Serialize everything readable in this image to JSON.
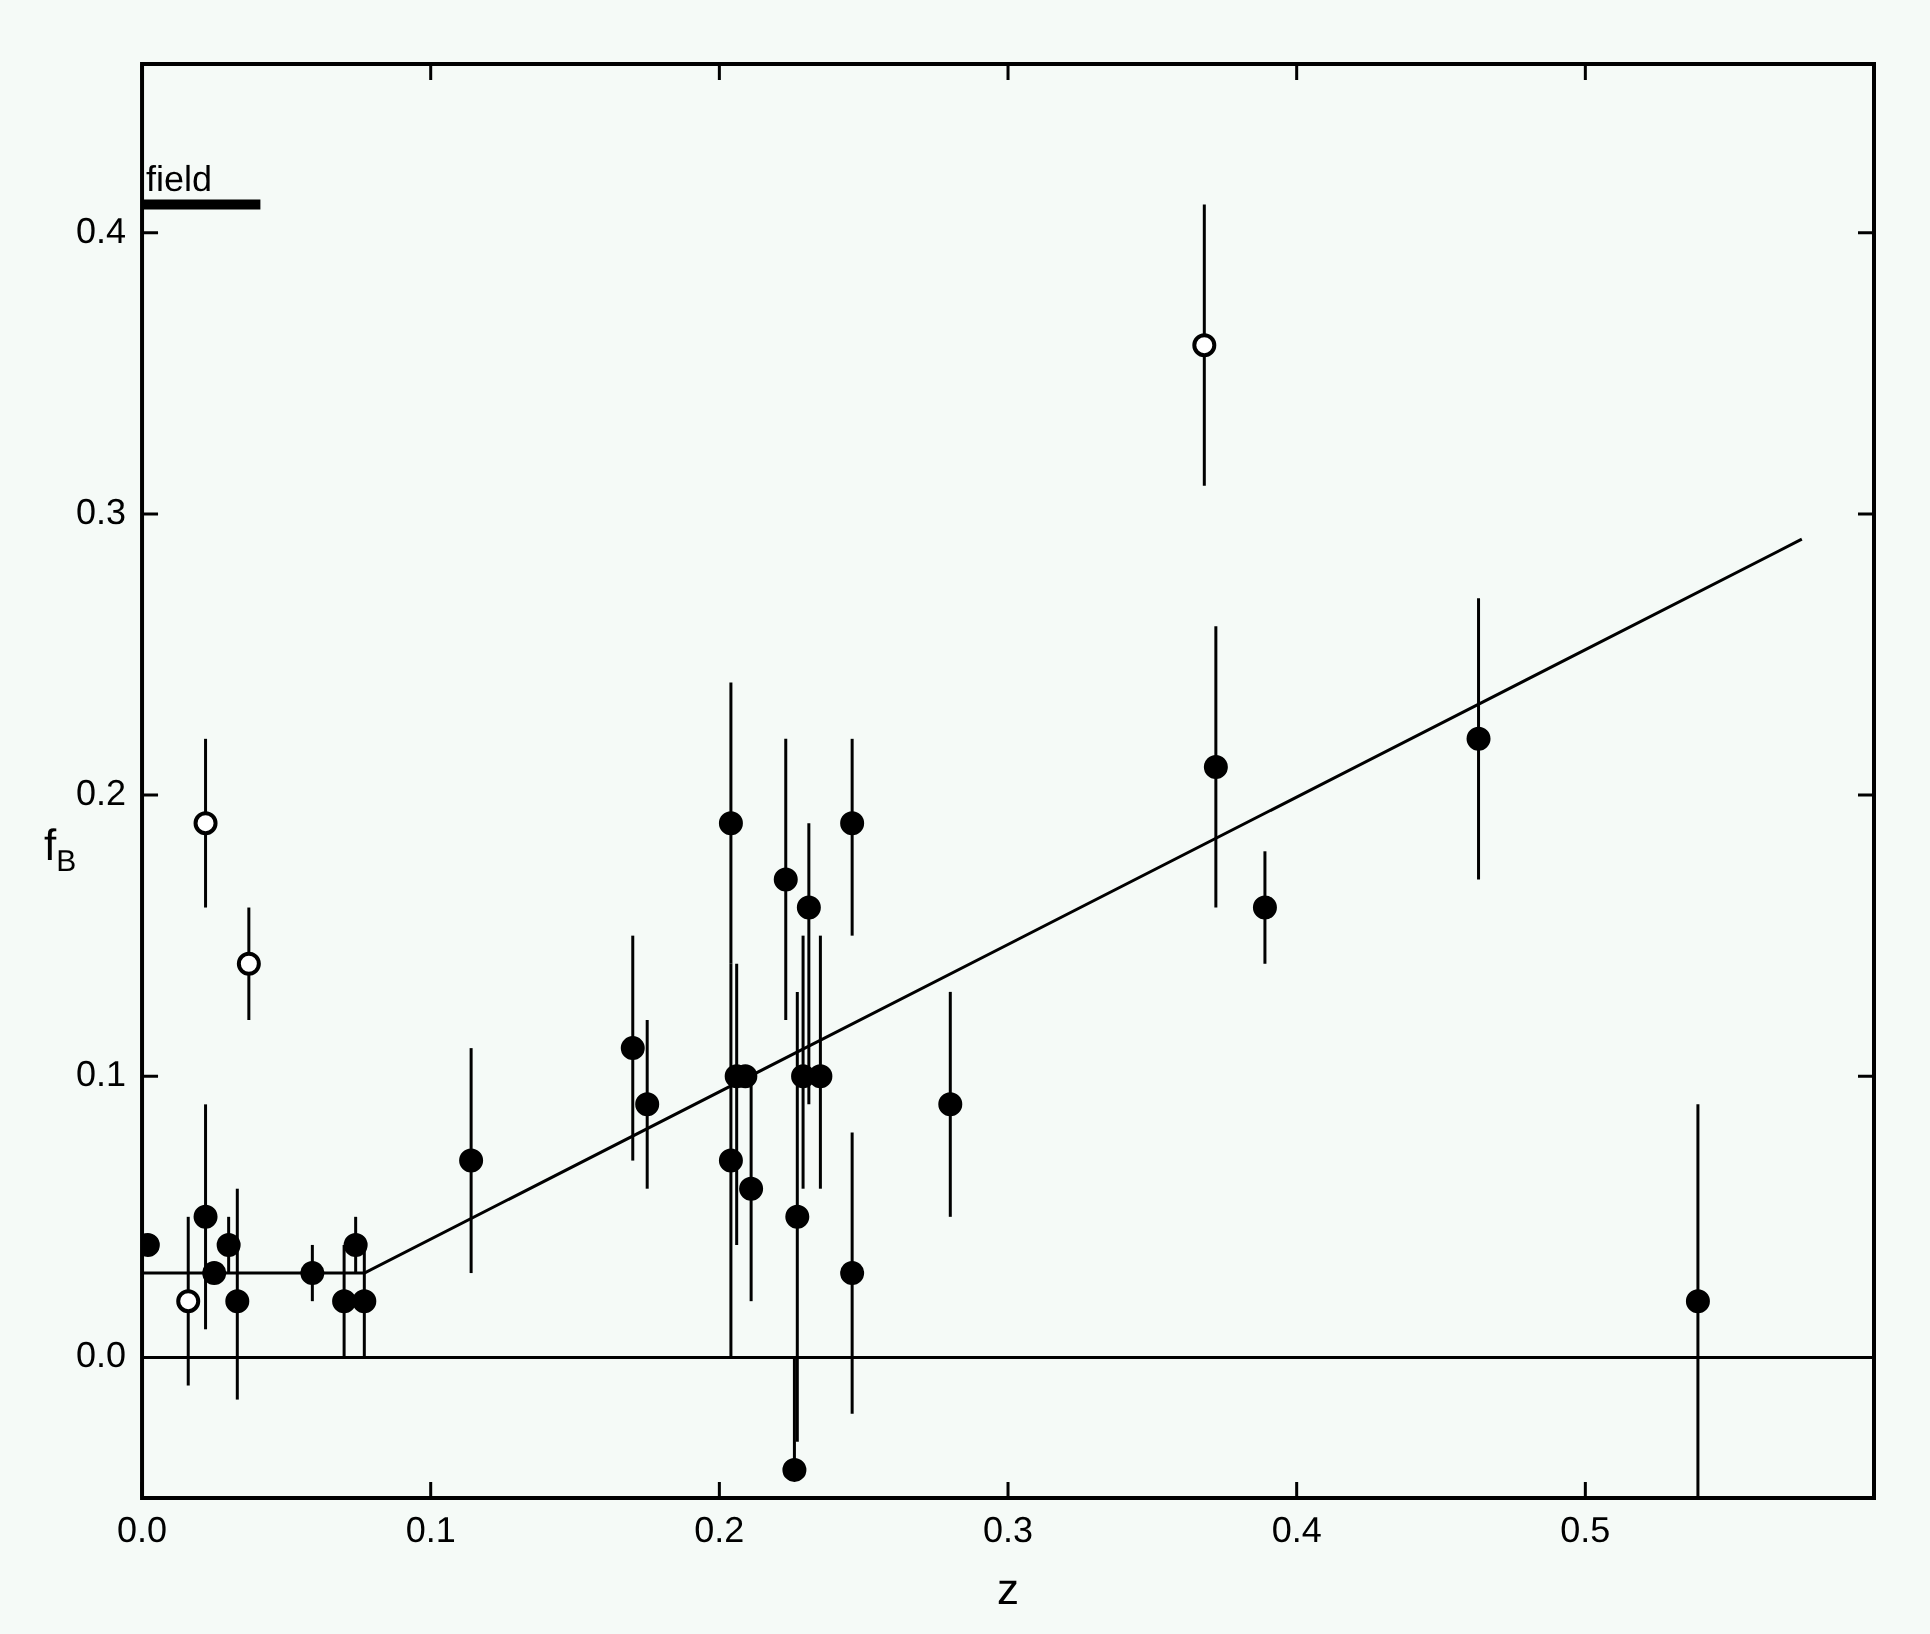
{
  "chart_data": {
    "type": "scatter",
    "xlabel": "z",
    "ylabel": "f$_{B}$",
    "xlim": [
      0,
      0.6
    ],
    "ylim": [
      -0.05,
      0.46
    ],
    "xticks": [
      {
        "value": 0,
        "label": "0.0"
      },
      {
        "value": 0.1,
        "label": "0.1"
      },
      {
        "value": 0.2,
        "label": "0.2"
      },
      {
        "value": 0.3,
        "label": "0.3"
      },
      {
        "value": 0.4,
        "label": "0.4"
      },
      {
        "value": 0.5,
        "label": "0.5"
      }
    ],
    "yticks": [
      {
        "value": 0,
        "label": "0.0"
      },
      {
        "value": 0.1,
        "label": "0.1"
      },
      {
        "value": 0.2,
        "label": "0.2"
      },
      {
        "value": 0.3,
        "label": "0.3"
      },
      {
        "value": 0.4,
        "label": "0.4"
      }
    ],
    "grid": false,
    "legend": false,
    "marker": "circle",
    "ref_lines": [
      {
        "axis": "y",
        "value": 0,
        "color": "#000000"
      }
    ],
    "series": [
      {
        "type": "scatter",
        "color": "#000000",
        "x": [
          0.002,
          0.022,
          0.025,
          0.03,
          0.033,
          0.059,
          0.07,
          0.074,
          0.077,
          0.114,
          0.17,
          0.175,
          0.204,
          0.204,
          0.206,
          0.209,
          0.211,
          0.223,
          0.226,
          0.227,
          0.229,
          0.231,
          0.235,
          0.246,
          0.246,
          0.28,
          0.372,
          0.389,
          0.463,
          0.539
        ],
        "values": [
          0.04,
          0.05,
          0.03,
          0.04,
          0.02,
          0.03,
          0.02,
          0.04,
          0.02,
          0.07,
          0.11,
          0.09,
          0.19,
          0.07,
          0.1,
          0.1,
          0.06,
          0.17,
          -0.04,
          0.05,
          0.1,
          0.16,
          0.1,
          0.19,
          0.03,
          0.09,
          0.21,
          0.16,
          0.22,
          0.02
        ],
        "errors": [
          null,
          [
            0.01,
            0.09
          ],
          null,
          [
            0.03,
            0.05
          ],
          [
            -0.015,
            0.06
          ],
          [
            0.02,
            0.04
          ],
          [
            0,
            0.04
          ],
          [
            0.03,
            0.05
          ],
          [
            0,
            0.04
          ],
          [
            0.03,
            0.11
          ],
          [
            0.07,
            0.15
          ],
          [
            0.06,
            0.12
          ],
          [
            0.14,
            0.24
          ],
          [
            0,
            0.14
          ],
          [
            0.04,
            0.14
          ],
          null,
          [
            0.02,
            0.1
          ],
          [
            0.12,
            0.22
          ],
          [
            -0.04,
            0
          ],
          [
            -0.03,
            0.13
          ],
          [
            0.06,
            0.15
          ],
          [
            0.09,
            0.19
          ],
          [
            0.06,
            0.15
          ],
          [
            0.15,
            0.22
          ],
          [
            -0.02,
            0.08
          ],
          [
            0.05,
            0.13
          ],
          [
            0.16,
            0.26
          ],
          [
            0.14,
            0.18
          ],
          [
            0.17,
            0.27
          ],
          [
            -0.05,
            0.09
          ]
        ]
      },
      {
        "type": "scatter",
        "color": "#ffffff",
        "x": [
          0.016,
          0.022,
          0.037,
          0.368
        ],
        "values": [
          0.02,
          0.19,
          0.14,
          0.36
        ],
        "errors": [
          [
            -0.01,
            0.05
          ],
          [
            0.16,
            0.22
          ],
          [
            0.12,
            0.16
          ],
          [
            0.31,
            0.41
          ]
        ]
      },
      {
        "type": "line",
        "color": "#000000",
        "x": [
          0,
          0.077,
          0.575
        ],
        "values": [
          0.03,
          0.03,
          0.291
        ],
        "marker": "none"
      },
      {
        "type": "line",
        "name": "field",
        "color": "#000000",
        "x": [
          0,
          0.041
        ],
        "values": [
          0.41,
          0.41
        ],
        "marker": "none"
      }
    ]
  }
}
